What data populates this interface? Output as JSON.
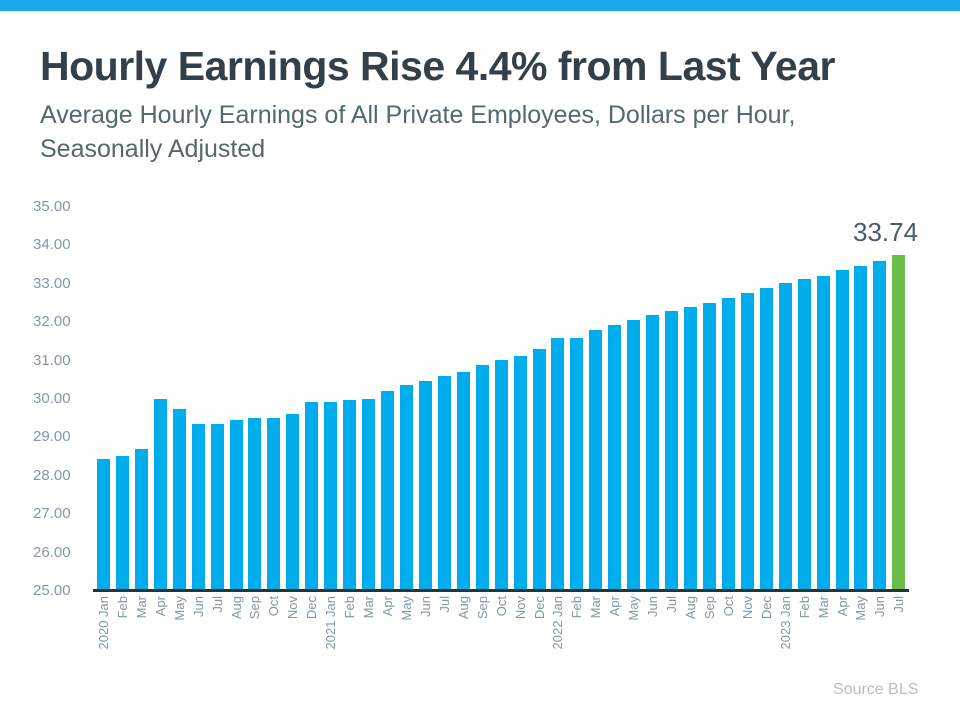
{
  "colors": {
    "top_bar": "#19a9e9",
    "bar": "#00adec",
    "highlight_bar": "#6cbe4c",
    "axis_line": "#2d3037",
    "title_text": "#333f49",
    "subtitle_text": "#546870",
    "tick_text": "#8496a6",
    "annotation_text": "#4a5c6b",
    "source_text": "#b8bfc6"
  },
  "chart_data": {
    "type": "bar",
    "title": "Hourly Earnings Rise 4.4% from Last Year",
    "subtitle_lines": [
      "Average Hourly Earnings of All Private Employees, Dollars per Hour,",
      "Seasonally Adjusted"
    ],
    "source": "Source BLS",
    "xlabel": "",
    "ylabel": "",
    "ylim": [
      25,
      35
    ],
    "ytick_step": 1,
    "ytick_labels": [
      "35.00",
      "34.00",
      "33.00",
      "32.00",
      "31.00",
      "30.00",
      "29.00",
      "28.00",
      "27.00",
      "26.00",
      "25.00"
    ],
    "grid": false,
    "legend": null,
    "highlight_index": 42,
    "annotation": {
      "text": "33.74",
      "index": 42
    },
    "categories": [
      "2020 Jan",
      "Feb",
      "Mar",
      "Apr",
      "May",
      "Jun",
      "Jul",
      "Aug",
      "Sep",
      "Oct",
      "Nov",
      "Dec",
      "2021 Jan",
      "Feb",
      "Mar",
      "Apr",
      "May",
      "Jun",
      "Jul",
      "Aug",
      "Sep",
      "Oct",
      "Nov",
      "Dec",
      "2022 Jan",
      "Feb",
      "Mar",
      "Apr",
      "May",
      "Jun",
      "Jul",
      "Aug",
      "Sep",
      "Oct",
      "Nov",
      "Dec",
      "2023 Jan",
      "Feb",
      "Mar",
      "Apr",
      "May",
      "Jun",
      "Jul"
    ],
    "values": [
      28.44,
      28.52,
      28.69,
      30.01,
      29.73,
      29.35,
      29.36,
      29.45,
      29.5,
      29.51,
      29.61,
      29.93,
      29.93,
      29.97,
      30.0,
      30.21,
      30.36,
      30.47,
      30.61,
      30.71,
      30.88,
      31.02,
      31.13,
      31.31,
      31.58,
      31.6,
      31.8,
      31.92,
      32.06,
      32.18,
      32.29,
      32.39,
      32.5,
      32.63,
      32.77,
      32.89,
      33.03,
      33.12,
      33.2,
      33.36,
      33.46,
      33.6,
      33.74
    ]
  }
}
